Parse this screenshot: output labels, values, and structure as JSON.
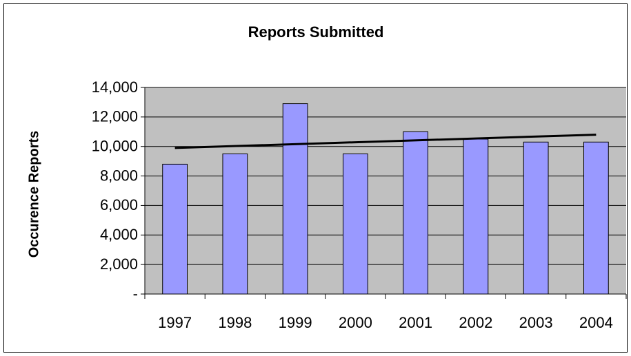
{
  "chart_data": {
    "type": "bar",
    "title": "Reports Submitted",
    "y_label": "Occurence Reports",
    "categories": [
      "1997",
      "1998",
      "1999",
      "2000",
      "2001",
      "2002",
      "2003",
      "2004"
    ],
    "values": [
      8800,
      9500,
      12900,
      9500,
      11000,
      10500,
      10300,
      10300
    ],
    "color": "#9999ff",
    "trendline": {
      "start": 9900,
      "end": 10800,
      "color": "#000000"
    },
    "ylim": [
      0,
      14000
    ],
    "yticks": [
      {
        "value": 0,
        "label": "-"
      },
      {
        "value": 2000,
        "label": "2,000"
      },
      {
        "value": 4000,
        "label": "4,000"
      },
      {
        "value": 6000,
        "label": "6,000"
      },
      {
        "value": 8000,
        "label": "8,000"
      },
      {
        "value": 10000,
        "label": "10,000"
      },
      {
        "value": 12000,
        "label": "12,000"
      },
      {
        "value": 14000,
        "label": "14,000"
      }
    ],
    "grid": true,
    "plot_background": "#c0c0c0"
  }
}
